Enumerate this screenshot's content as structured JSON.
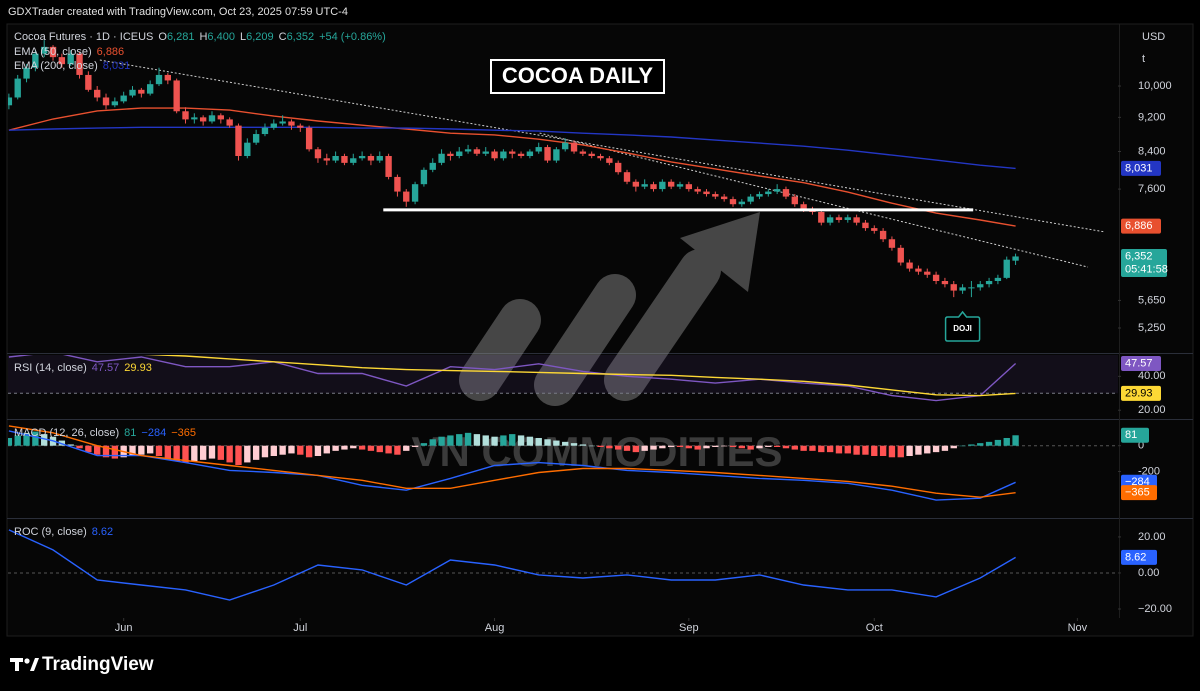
{
  "header": {
    "attribution": "GDXTrader created with TradingView.com, Oct 23, 2025 07:59 UTC-4",
    "brand": "TradingView",
    "watermark": "VN COMMODITIES"
  },
  "x_axis": {
    "xlim": [
      -0.1,
      125.6
    ],
    "xticks": [
      {
        "value": 13,
        "label": "Jun"
      },
      {
        "value": 33,
        "label": "Jul"
      },
      {
        "value": 55,
        "label": "Aug"
      },
      {
        "value": 77,
        "label": "Sep"
      },
      {
        "value": 98,
        "label": "Oct"
      },
      {
        "value": 121,
        "label": "Nov"
      }
    ]
  },
  "line_x": [
    0,
    5,
    10,
    15,
    20,
    25,
    30,
    35,
    40,
    45,
    50,
    55,
    60,
    65,
    70,
    75,
    80,
    85,
    90,
    95,
    100,
    105,
    110,
    114
  ],
  "chart_data": [
    {
      "type": "candlestick",
      "title": "COCOA DAILY",
      "symbol": "Cocoa Futures · 1D · ICEUS",
      "legend_ohlc": [
        {
          "key": "O",
          "label": "6,281"
        },
        {
          "key": "H",
          "label": "6,400"
        },
        {
          "key": "L",
          "label": "6,209"
        },
        {
          "key": "C",
          "label": "6,352"
        }
      ],
      "change": "+54 (+0.86%)",
      "currency": "USD",
      "unit": "t",
      "last_price_label": "6,352",
      "countdown": "05:41:58",
      "log_scale": true,
      "grid": false,
      "ylim": [
        4925,
        11765
      ],
      "yticks": [
        {
          "value": 10000,
          "label": "10,000"
        },
        {
          "value": 9200,
          "label": "9,200"
        },
        {
          "value": 8400,
          "label": "8,400"
        },
        {
          "value": 7600,
          "label": "7,600"
        },
        {
          "value": 5650,
          "label": "5,650"
        },
        {
          "value": 5250,
          "label": "5,250"
        }
      ],
      "up_color": "#26a69a",
      "down_color": "#ef5350",
      "ohlc": [
        [
          9500,
          9800,
          9400,
          9700
        ],
        [
          9700,
          10300,
          9650,
          10200
        ],
        [
          10200,
          10600,
          10100,
          10500
        ],
        [
          10500,
          11000,
          10400,
          10900
        ],
        [
          10900,
          11300,
          10800,
          11100
        ],
        [
          11100,
          11150,
          10700,
          10800
        ],
        [
          10800,
          10900,
          10500,
          10600
        ],
        [
          10600,
          11000,
          10550,
          10900
        ],
        [
          10900,
          10950,
          10200,
          10300
        ],
        [
          10300,
          10400,
          9850,
          9900
        ],
        [
          9900,
          10000,
          9600,
          9700
        ],
        [
          9700,
          9800,
          9400,
          9500
        ],
        [
          9500,
          9700,
          9450,
          9600
        ],
        [
          9600,
          9850,
          9550,
          9750
        ],
        [
          9750,
          10000,
          9700,
          9900
        ],
        [
          9900,
          9950,
          9700,
          9800
        ],
        [
          9800,
          10150,
          9750,
          10050
        ],
        [
          10050,
          10500,
          10000,
          10300
        ],
        [
          10300,
          10350,
          10050,
          10150
        ],
        [
          10150,
          10200,
          9300,
          9350
        ],
        [
          9350,
          9450,
          9050,
          9150
        ],
        [
          9150,
          9300,
          9050,
          9200
        ],
        [
          9200,
          9250,
          9000,
          9100
        ],
        [
          9100,
          9350,
          9050,
          9250
        ],
        [
          9250,
          9300,
          9050,
          9150
        ],
        [
          9150,
          9200,
          8950,
          9000
        ],
        [
          9000,
          9050,
          8200,
          8300
        ],
        [
          8300,
          8700,
          8250,
          8600
        ],
        [
          8600,
          8900,
          8550,
          8800
        ],
        [
          8800,
          9050,
          8750,
          8950
        ],
        [
          8950,
          9150,
          8900,
          9050
        ],
        [
          9050,
          9250,
          9000,
          9100
        ],
        [
          9100,
          9150,
          8900,
          9000
        ],
        [
          9000,
          9050,
          8850,
          8950
        ],
        [
          8950,
          9000,
          8400,
          8450
        ],
        [
          8450,
          8500,
          8150,
          8250
        ],
        [
          8250,
          8350,
          8100,
          8200
        ],
        [
          8200,
          8400,
          8150,
          8300
        ],
        [
          8300,
          8350,
          8100,
          8150
        ],
        [
          8150,
          8350,
          8100,
          8250
        ],
        [
          8250,
          8400,
          8200,
          8300
        ],
        [
          8300,
          8350,
          8100,
          8200
        ],
        [
          8200,
          8400,
          8150,
          8300
        ],
        [
          8300,
          8350,
          7800,
          7850
        ],
        [
          7850,
          7900,
          7450,
          7550
        ],
        [
          7550,
          7600,
          7250,
          7350
        ],
        [
          7350,
          7750,
          7300,
          7700
        ],
        [
          7700,
          8050,
          7650,
          8000
        ],
        [
          8000,
          8250,
          7950,
          8150
        ],
        [
          8150,
          8450,
          8100,
          8350
        ],
        [
          8350,
          8400,
          8200,
          8300
        ],
        [
          8300,
          8500,
          8250,
          8400
        ],
        [
          8400,
          8550,
          8350,
          8450
        ],
        [
          8450,
          8500,
          8300,
          8350
        ],
        [
          8350,
          8500,
          8300,
          8400
        ],
        [
          8400,
          8450,
          8200,
          8250
        ],
        [
          8250,
          8450,
          8200,
          8400
        ],
        [
          8400,
          8450,
          8250,
          8350
        ],
        [
          8350,
          8400,
          8250,
          8300
        ],
        [
          8300,
          8450,
          8250,
          8400
        ],
        [
          8400,
          8600,
          8350,
          8500
        ],
        [
          8500,
          8550,
          8150,
          8200
        ],
        [
          8200,
          8500,
          8150,
          8450
        ],
        [
          8450,
          8700,
          8400,
          8600
        ],
        [
          8600,
          8650,
          8350,
          8400
        ],
        [
          8400,
          8450,
          8300,
          8350
        ],
        [
          8350,
          8400,
          8250,
          8300
        ],
        [
          8300,
          8350,
          8200,
          8250
        ],
        [
          8250,
          8300,
          8100,
          8150
        ],
        [
          8150,
          8200,
          7900,
          7950
        ],
        [
          7950,
          8000,
          7700,
          7750
        ],
        [
          7750,
          7800,
          7550,
          7650
        ],
        [
          7650,
          7800,
          7600,
          7700
        ],
        [
          7700,
          7750,
          7550,
          7600
        ],
        [
          7600,
          7800,
          7550,
          7750
        ],
        [
          7750,
          7800,
          7600,
          7650
        ],
        [
          7650,
          7750,
          7600,
          7700
        ],
        [
          7700,
          7750,
          7550,
          7600
        ],
        [
          7600,
          7650,
          7500,
          7550
        ],
        [
          7550,
          7600,
          7450,
          7500
        ],
        [
          7500,
          7550,
          7400,
          7450
        ],
        [
          7450,
          7500,
          7350,
          7400
        ],
        [
          7400,
          7450,
          7250,
          7300
        ],
        [
          7300,
          7400,
          7250,
          7350
        ],
        [
          7350,
          7500,
          7300,
          7450
        ],
        [
          7450,
          7550,
          7400,
          7500
        ],
        [
          7500,
          7600,
          7450,
          7550
        ],
        [
          7550,
          7700,
          7500,
          7600
        ],
        [
          7600,
          7650,
          7400,
          7450
        ],
        [
          7450,
          7500,
          7250,
          7300
        ],
        [
          7300,
          7350,
          7150,
          7200
        ],
        [
          7200,
          7250,
          7100,
          7150
        ],
        [
          7150,
          7200,
          6900,
          6950
        ],
        [
          6950,
          7100,
          6900,
          7050
        ],
        [
          7050,
          7100,
          6950,
          7000
        ],
        [
          7000,
          7100,
          6950,
          7050
        ],
        [
          7050,
          7100,
          6900,
          6950
        ],
        [
          6950,
          7000,
          6800,
          6850
        ],
        [
          6850,
          6900,
          6750,
          6800
        ],
        [
          6800,
          6850,
          6600,
          6650
        ],
        [
          6650,
          6700,
          6450,
          6500
        ],
        [
          6500,
          6550,
          6200,
          6250
        ],
        [
          6250,
          6300,
          6100,
          6150
        ],
        [
          6150,
          6200,
          6050,
          6100
        ],
        [
          6100,
          6150,
          6000,
          6050
        ],
        [
          6050,
          6100,
          5900,
          5950
        ],
        [
          5950,
          6000,
          5850,
          5900
        ],
        [
          5900,
          5950,
          5700,
          5800
        ],
        [
          5800,
          5900,
          5750,
          5850
        ],
        [
          5850,
          5950,
          5700,
          5850
        ],
        [
          5850,
          5950,
          5800,
          5900
        ],
        [
          5900,
          6000,
          5850,
          5950
        ],
        [
          5950,
          6050,
          5900,
          6000
        ],
        [
          6000,
          6350,
          5980,
          6298
        ],
        [
          6281,
          6400,
          6209,
          6352
        ]
      ],
      "series": [
        {
          "name": "EMA (50, close)",
          "color": "#e8502f",
          "last_label": "6,886",
          "values": [
            8890,
            9160,
            9360,
            9430,
            9430,
            9380,
            9230,
            9110,
            9010,
            8920,
            8820,
            8780,
            8680,
            8550,
            8370,
            8170,
            8020,
            7870,
            7730,
            7540,
            7320,
            7130,
            7000,
            6886
          ]
        },
        {
          "name": "EMA (200, close)",
          "color": "#2336c4",
          "last_label": "8,031",
          "values": [
            8890,
            8920,
            8940,
            8960,
            8960,
            8960,
            8960,
            8960,
            8940,
            8940,
            8920,
            8890,
            8870,
            8820,
            8780,
            8730,
            8660,
            8590,
            8520,
            8430,
            8320,
            8210,
            8100,
            8031
          ]
        }
      ],
      "support": {
        "x": [
          42.4,
          109.2
        ],
        "y": 7190,
        "color": "#ffffff"
      },
      "trendlines": [
        {
          "x": [
            10.3,
            124.1
          ],
          "y": [
            10717,
            6781
          ]
        },
        {
          "x": [
            60.1,
            122.2
          ],
          "y": [
            8823,
            6175
          ]
        }
      ],
      "annotation": {
        "text": "DOJI",
        "x": 108,
        "color": "#26a69a"
      }
    },
    {
      "type": "rsi",
      "name": "RSI (14, close)",
      "ylim": [
        15.4,
        52.6
      ],
      "yticks": [
        {
          "value": 40,
          "label": "40.00"
        },
        {
          "value": 20,
          "label": "20.00"
        }
      ],
      "band": [
        30,
        70
      ],
      "band_color": "#7e57c2",
      "series": [
        {
          "color": "#7e57c2",
          "values": [
            51.4,
            54.3,
            48.6,
            51.4,
            45.7,
            45.7,
            48.6,
            41.7,
            41.7,
            34.3,
            45.7,
            44,
            47.4,
            42.9,
            40,
            38.3,
            36,
            38.3,
            36,
            34.3,
            28.6,
            25.7,
            28.6,
            47.57
          ]
        },
        {
          "color": "#fdd835",
          "values": [
            54.3,
            54.3,
            53.7,
            53.1,
            52,
            50.3,
            48.6,
            46.9,
            45.1,
            44,
            43.4,
            42.9,
            42.3,
            41.7,
            41.1,
            40.6,
            39.4,
            38.3,
            37.1,
            34.9,
            32,
            29.1,
            28.6,
            29.93
          ]
        }
      ]
    },
    {
      "type": "macd",
      "name": "MACD (12, 26, close)",
      "ylim": [
        -554,
        192
      ],
      "yticks": [
        0,
        -200
      ],
      "zero_line": true,
      "histogram": {
        "colors": {
          "up_strong": "#26a69a",
          "up_weak": "#b2dfdb",
          "down_strong": "#ff5252",
          "down_weak": "#ffcdd2"
        },
        "values": [
          60,
          80,
          100,
          110,
          90,
          70,
          40,
          10,
          -20,
          -50,
          -70,
          -90,
          -100,
          -90,
          -80,
          -70,
          -60,
          -80,
          -100,
          -120,
          -130,
          -120,
          -110,
          -100,
          -110,
          -130,
          -150,
          -130,
          -110,
          -90,
          -80,
          -70,
          -60,
          -70,
          -90,
          -80,
          -60,
          -40,
          -30,
          -20,
          -30,
          -40,
          -50,
          -60,
          -70,
          -40,
          -10,
          20,
          50,
          70,
          80,
          90,
          100,
          90,
          80,
          70,
          80,
          90,
          80,
          70,
          60,
          50,
          40,
          30,
          20,
          10,
          0,
          -10,
          -20,
          -30,
          -40,
          -50,
          -40,
          -30,
          -20,
          -10,
          -10,
          -20,
          -30,
          -20,
          -10,
          -5,
          -10,
          -20,
          -30,
          -20,
          -10,
          -10,
          -20,
          -30,
          -40,
          -40,
          -50,
          -50,
          -60,
          -60,
          -70,
          -70,
          -80,
          -80,
          -90,
          -90,
          -80,
          -70,
          -60,
          -50,
          -40,
          -20,
          0,
          10,
          20,
          30,
          45,
          60,
          81
        ]
      },
      "series": [
        {
          "color": "#2962ff",
          "last_label": "−284",
          "values": [
            115,
            38,
            -77,
            -77,
            -131,
            -192,
            -208,
            -231,
            -308,
            -346,
            -254,
            -154,
            -131,
            -154,
            -192,
            -208,
            -231,
            -254,
            -269,
            -292,
            -346,
            -423,
            -408,
            -284
          ]
        },
        {
          "color": "#ff6d00",
          "last_label": "−365",
          "values": [
            154,
            100,
            0,
            -77,
            -115,
            -154,
            -192,
            -231,
            -269,
            -331,
            -331,
            -269,
            -208,
            -177,
            -177,
            -192,
            -208,
            -231,
            -254,
            -277,
            -315,
            -369,
            -400,
            -365
          ]
        }
      ]
    },
    {
      "type": "roc",
      "name": "ROC (9, close)",
      "ylim": [
        -25,
        29.4
      ],
      "yticks": [
        {
          "value": 20,
          "label": "20.00"
        },
        {
          "value": 0,
          "label": "0.00"
        },
        {
          "value": -20,
          "label": "−20.00"
        }
      ],
      "zero_line": true,
      "series": [
        {
          "color": "#2962ff",
          "values": [
            23.9,
            12.8,
            -3.9,
            -6.7,
            -9.4,
            -15,
            -6.7,
            4.4,
            1.7,
            -6.7,
            7.2,
            4.4,
            -1.1,
            -2.8,
            -1.1,
            -3.9,
            -3.9,
            -1.1,
            -6.7,
            -9.4,
            -9.4,
            -13.3,
            -2.8,
            8.62
          ]
        }
      ]
    }
  ]
}
